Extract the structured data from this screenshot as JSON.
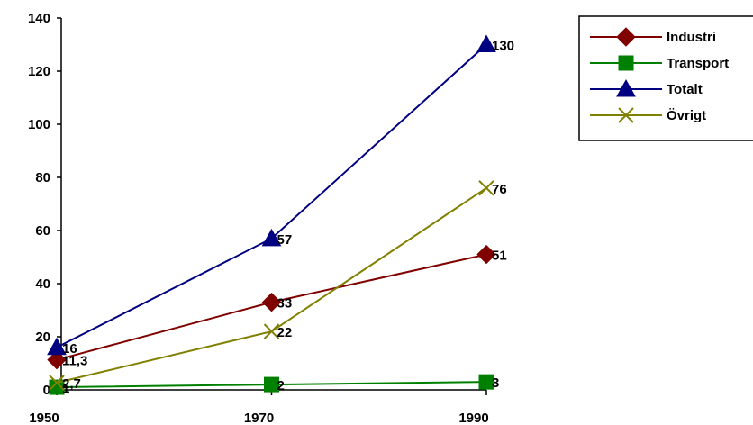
{
  "chart_data": {
    "type": "line",
    "x": [
      "1950",
      "1970",
      "1990"
    ],
    "ylim": [
      0,
      140
    ],
    "yticks": [
      "0",
      "20",
      "40",
      "60",
      "80",
      "100",
      "120",
      "140"
    ],
    "grid": false,
    "legend_position": "top-right",
    "series": [
      {
        "name": "Industri",
        "values": [
          11.3,
          33,
          51
        ],
        "labels": [
          "11,3",
          "33",
          "51"
        ],
        "color": "#800000",
        "marker": "diamond"
      },
      {
        "name": "Transport",
        "values": [
          1,
          2,
          3
        ],
        "labels": [
          "1",
          "2",
          "3"
        ],
        "color": "#008000",
        "marker": "square"
      },
      {
        "name": "Totalt",
        "values": [
          16,
          57,
          130
        ],
        "labels": [
          "16",
          "57",
          "130"
        ],
        "color": "#000080",
        "marker": "triangle"
      },
      {
        "name": "Övrigt",
        "values": [
          2.7,
          22,
          76
        ],
        "labels": [
          "2,7",
          "22",
          "76"
        ],
        "color": "#808000",
        "marker": "x"
      }
    ]
  }
}
